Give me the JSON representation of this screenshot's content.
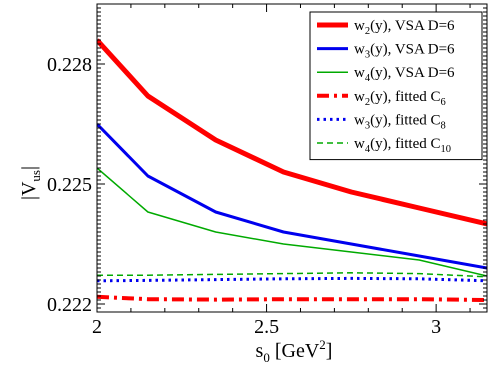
{
  "chart_data": {
    "type": "line",
    "xlabel": {
      "main": "s",
      "sub": "0",
      "rest": " [GeV",
      "sup": "2",
      "end": "]"
    },
    "ylabel": {
      "bar1": "|",
      "main": "V",
      "sub": "us",
      "bar2": "|"
    },
    "xlim": [
      2.0,
      3.15
    ],
    "ylim": [
      0.2218,
      0.2295
    ],
    "xticks": [
      2,
      2.5,
      3
    ],
    "xtick_labels": [
      "2",
      "2.5",
      "3"
    ],
    "yticks": [
      0.222,
      0.225,
      0.228
    ],
    "ytick_labels": [
      "0.222",
      "0.225",
      "0.228"
    ],
    "x": [
      2.0,
      2.15,
      2.35,
      2.55,
      2.75,
      2.95,
      3.15
    ],
    "grid": false,
    "legend_position": "top-right",
    "series": [
      {
        "name": "w2(y), VSA D=6",
        "legend": {
          "pre": "w",
          "sub": "2",
          "post": "(y), VSA D=6",
          "sub2": ""
        },
        "color": "#ff0000",
        "dash": "solid",
        "width": 5,
        "values": [
          0.2286,
          0.2272,
          0.2261,
          0.2253,
          0.2248,
          0.2244,
          0.224
        ]
      },
      {
        "name": "w3(y), VSA D=6",
        "legend": {
          "pre": "w",
          "sub": "3",
          "post": "(y), VSA D=6",
          "sub2": ""
        },
        "color": "#0000ee",
        "dash": "solid",
        "width": 3,
        "values": [
          0.2265,
          0.2252,
          0.2243,
          0.2238,
          0.2235,
          0.2232,
          0.2229
        ]
      },
      {
        "name": "w4(y), VSA D=6",
        "legend": {
          "pre": "w",
          "sub": "4",
          "post": "(y), VSA D=6",
          "sub2": ""
        },
        "color": "#00aa00",
        "dash": "solid",
        "width": 1.5,
        "values": [
          0.2254,
          0.2243,
          0.2238,
          0.2235,
          0.2233,
          0.2231,
          0.2227
        ]
      },
      {
        "name": "w2(y), fitted C6",
        "legend": {
          "pre": "w",
          "sub": "2",
          "post": "(y), fitted C",
          "sub2": "6"
        },
        "color": "#ff0000",
        "dash": "dashdot",
        "width": 4,
        "values": [
          0.22218,
          0.22212,
          0.22211,
          0.22212,
          0.22212,
          0.22212,
          0.2221
        ]
      },
      {
        "name": "w3(y), fitted C8",
        "legend": {
          "pre": "w",
          "sub": "3",
          "post": "(y), fitted C",
          "sub2": "8"
        },
        "color": "#0000ee",
        "dash": "dotted",
        "width": 3,
        "values": [
          0.22258,
          0.22259,
          0.22261,
          0.22263,
          0.22264,
          0.22263,
          0.22258
        ]
      },
      {
        "name": "w4(y), fitted C10",
        "legend": {
          "pre": "w",
          "sub": "4",
          "post": "(y), fitted C",
          "sub2": "10"
        },
        "color": "#00aa00",
        "dash": "dashed",
        "width": 1.5,
        "values": [
          0.22272,
          0.22272,
          0.22274,
          0.22276,
          0.22278,
          0.22276,
          0.22268
        ]
      }
    ]
  }
}
